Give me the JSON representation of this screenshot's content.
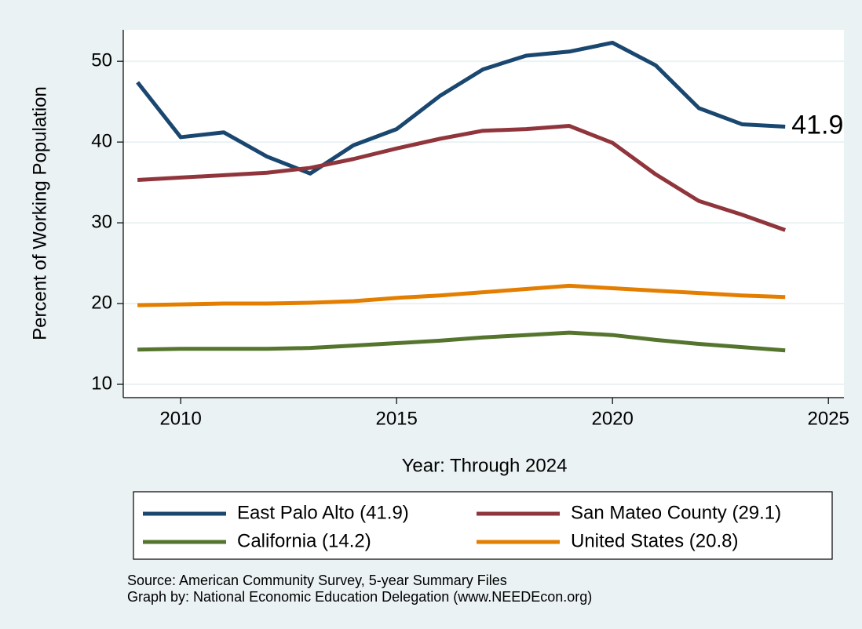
{
  "chart_data": {
    "type": "line",
    "x_label": "Year: Through 2024",
    "y_label": "Percent of Working Population",
    "x": [
      2009,
      2010,
      2011,
      2012,
      2013,
      2014,
      2015,
      2016,
      2017,
      2018,
      2019,
      2020,
      2021,
      2022,
      2023,
      2024
    ],
    "series": [
      {
        "name": "East Palo Alto (41.9)",
        "color": "#1a476f",
        "values": [
          47.4,
          40.6,
          41.2,
          38.2,
          36.1,
          39.6,
          41.6,
          45.7,
          49.0,
          50.7,
          51.2,
          52.3,
          49.5,
          44.2,
          42.2,
          41.9
        ],
        "value_labels": [
          null,
          null,
          null,
          null,
          null,
          null,
          null,
          null,
          null,
          null,
          null,
          null,
          null,
          null,
          null,
          "41.9"
        ]
      },
      {
        "name": "San Mateo County (29.1)",
        "color": "#90353b",
        "values": [
          35.3,
          35.6,
          35.9,
          36.2,
          36.8,
          37.9,
          39.2,
          40.4,
          41.4,
          41.6,
          42.0,
          39.9,
          36.0,
          32.7,
          31.0,
          29.1
        ]
      },
      {
        "name": "California (14.2)",
        "color": "#55752f",
        "values": [
          14.3,
          14.4,
          14.4,
          14.4,
          14.5,
          14.8,
          15.1,
          15.4,
          15.8,
          16.1,
          16.4,
          16.1,
          15.5,
          15.0,
          14.6,
          14.2
        ]
      },
      {
        "name": "United States (20.8)",
        "color": "#e37e00",
        "values": [
          19.8,
          19.9,
          20.0,
          20.0,
          20.1,
          20.3,
          20.7,
          21.0,
          21.4,
          21.8,
          22.2,
          21.9,
          21.6,
          21.3,
          21.0,
          20.8
        ]
      }
    ],
    "xlim": [
      2008.67,
      2025.36
    ],
    "xticks": [
      2010,
      2015,
      2020,
      2025
    ],
    "ylim": [
      8.35,
      53.9
    ],
    "yticks": [
      10,
      20,
      30,
      40,
      50
    ],
    "grid": true,
    "legend": "bottom",
    "notes": [
      "Source: American Community Survey, 5-year Summary Files",
      "Graph by: National Economic Education Delegation (www.NEEDEcon.org)"
    ]
  }
}
